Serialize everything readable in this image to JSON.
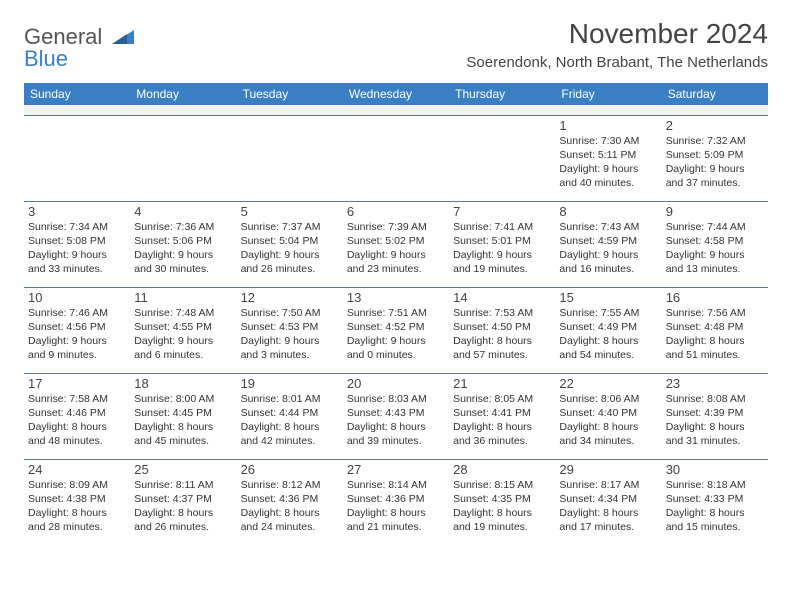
{
  "logo": {
    "line1": "General",
    "line2": "Blue"
  },
  "title": "November 2024",
  "location": "Soerendonk, North Brabant, The Netherlands",
  "colors": {
    "header_bg": "#3a7fc4",
    "header_text": "#ffffff",
    "border": "#5a7a9a",
    "text": "#333333",
    "blank_row_bg": "#f2f2f2"
  },
  "day_headers": [
    "Sunday",
    "Monday",
    "Tuesday",
    "Wednesday",
    "Thursday",
    "Friday",
    "Saturday"
  ],
  "weeks": [
    [
      null,
      null,
      null,
      null,
      null,
      {
        "n": "1",
        "sr": "7:30 AM",
        "ss": "5:11 PM",
        "dl": "9 hours and 40 minutes."
      },
      {
        "n": "2",
        "sr": "7:32 AM",
        "ss": "5:09 PM",
        "dl": "9 hours and 37 minutes."
      }
    ],
    [
      {
        "n": "3",
        "sr": "7:34 AM",
        "ss": "5:08 PM",
        "dl": "9 hours and 33 minutes."
      },
      {
        "n": "4",
        "sr": "7:36 AM",
        "ss": "5:06 PM",
        "dl": "9 hours and 30 minutes."
      },
      {
        "n": "5",
        "sr": "7:37 AM",
        "ss": "5:04 PM",
        "dl": "9 hours and 26 minutes."
      },
      {
        "n": "6",
        "sr": "7:39 AM",
        "ss": "5:02 PM",
        "dl": "9 hours and 23 minutes."
      },
      {
        "n": "7",
        "sr": "7:41 AM",
        "ss": "5:01 PM",
        "dl": "9 hours and 19 minutes."
      },
      {
        "n": "8",
        "sr": "7:43 AM",
        "ss": "4:59 PM",
        "dl": "9 hours and 16 minutes."
      },
      {
        "n": "9",
        "sr": "7:44 AM",
        "ss": "4:58 PM",
        "dl": "9 hours and 13 minutes."
      }
    ],
    [
      {
        "n": "10",
        "sr": "7:46 AM",
        "ss": "4:56 PM",
        "dl": "9 hours and 9 minutes."
      },
      {
        "n": "11",
        "sr": "7:48 AM",
        "ss": "4:55 PM",
        "dl": "9 hours and 6 minutes."
      },
      {
        "n": "12",
        "sr": "7:50 AM",
        "ss": "4:53 PM",
        "dl": "9 hours and 3 minutes."
      },
      {
        "n": "13",
        "sr": "7:51 AM",
        "ss": "4:52 PM",
        "dl": "9 hours and 0 minutes."
      },
      {
        "n": "14",
        "sr": "7:53 AM",
        "ss": "4:50 PM",
        "dl": "8 hours and 57 minutes."
      },
      {
        "n": "15",
        "sr": "7:55 AM",
        "ss": "4:49 PM",
        "dl": "8 hours and 54 minutes."
      },
      {
        "n": "16",
        "sr": "7:56 AM",
        "ss": "4:48 PM",
        "dl": "8 hours and 51 minutes."
      }
    ],
    [
      {
        "n": "17",
        "sr": "7:58 AM",
        "ss": "4:46 PM",
        "dl": "8 hours and 48 minutes."
      },
      {
        "n": "18",
        "sr": "8:00 AM",
        "ss": "4:45 PM",
        "dl": "8 hours and 45 minutes."
      },
      {
        "n": "19",
        "sr": "8:01 AM",
        "ss": "4:44 PM",
        "dl": "8 hours and 42 minutes."
      },
      {
        "n": "20",
        "sr": "8:03 AM",
        "ss": "4:43 PM",
        "dl": "8 hours and 39 minutes."
      },
      {
        "n": "21",
        "sr": "8:05 AM",
        "ss": "4:41 PM",
        "dl": "8 hours and 36 minutes."
      },
      {
        "n": "22",
        "sr": "8:06 AM",
        "ss": "4:40 PM",
        "dl": "8 hours and 34 minutes."
      },
      {
        "n": "23",
        "sr": "8:08 AM",
        "ss": "4:39 PM",
        "dl": "8 hours and 31 minutes."
      }
    ],
    [
      {
        "n": "24",
        "sr": "8:09 AM",
        "ss": "4:38 PM",
        "dl": "8 hours and 28 minutes."
      },
      {
        "n": "25",
        "sr": "8:11 AM",
        "ss": "4:37 PM",
        "dl": "8 hours and 26 minutes."
      },
      {
        "n": "26",
        "sr": "8:12 AM",
        "ss": "4:36 PM",
        "dl": "8 hours and 24 minutes."
      },
      {
        "n": "27",
        "sr": "8:14 AM",
        "ss": "4:36 PM",
        "dl": "8 hours and 21 minutes."
      },
      {
        "n": "28",
        "sr": "8:15 AM",
        "ss": "4:35 PM",
        "dl": "8 hours and 19 minutes."
      },
      {
        "n": "29",
        "sr": "8:17 AM",
        "ss": "4:34 PM",
        "dl": "8 hours and 17 minutes."
      },
      {
        "n": "30",
        "sr": "8:18 AM",
        "ss": "4:33 PM",
        "dl": "8 hours and 15 minutes."
      }
    ]
  ],
  "labels": {
    "sunrise": "Sunrise: ",
    "sunset": "Sunset: ",
    "daylight": "Daylight: "
  }
}
